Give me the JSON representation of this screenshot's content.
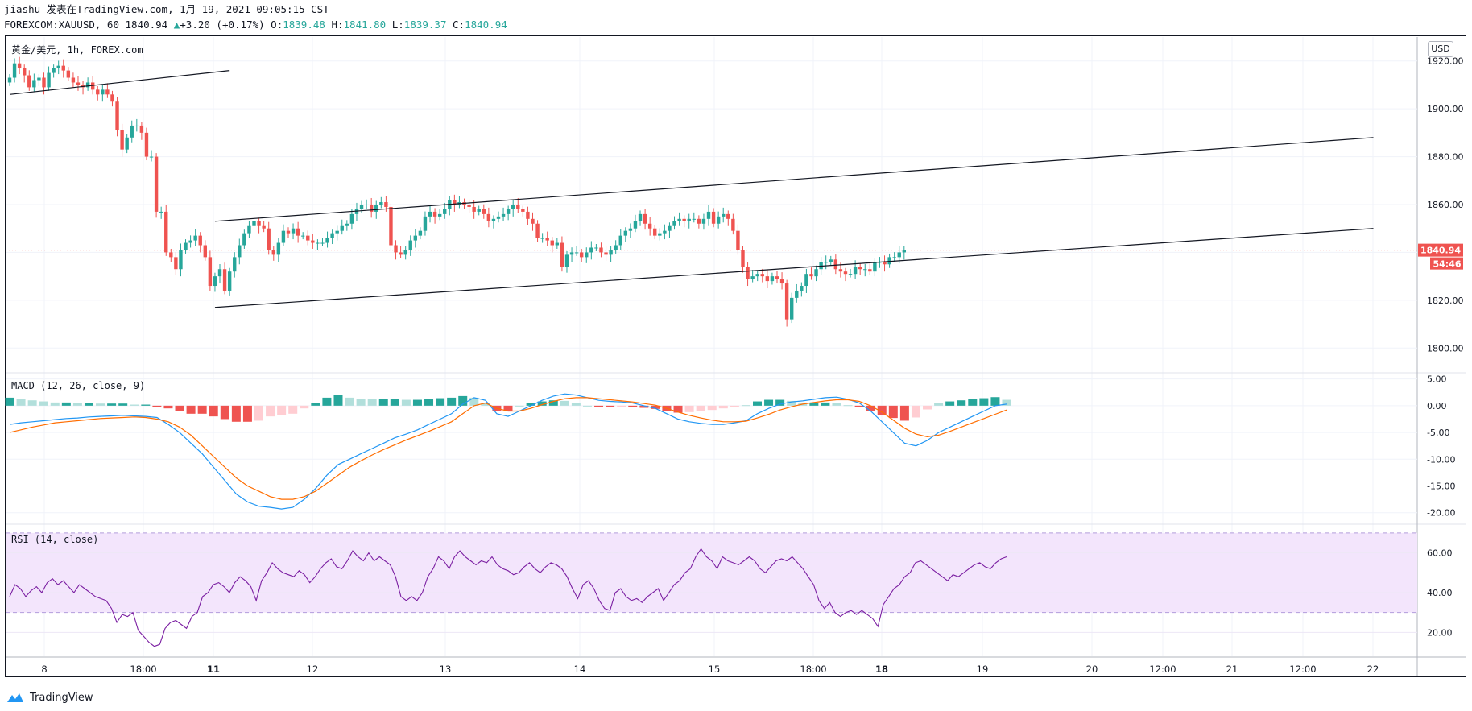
{
  "header": {
    "line1": "jiashu 发表在TradingView.com, 1月 19, 2021 09:05:15 CST",
    "symbol": "FOREXCOM:XAUUSD, 60",
    "last": "1840.94",
    "change": "+3.20 (+0.17%)",
    "o_label": "O:",
    "o_value": "1839.48",
    "h_label": "H:",
    "h_value": "1841.80",
    "l_label": "L:",
    "l_value": "1839.37",
    "c_label": "C:",
    "c_value": "1840.94"
  },
  "currency_badge": "USD",
  "footer_brand": "TradingView",
  "colors": {
    "up": "#26a69a",
    "down": "#ef5350",
    "macd": "#2196f3",
    "signal": "#ff6d00",
    "rsi": "#7b1fa2",
    "rsi_band": "#f3e5fc",
    "price_label": "#ef5350"
  },
  "chart_data": [
    {
      "type": "candlestick",
      "title": "黄金/美元, 1h, FOREX.com",
      "ylim": [
        1790,
        1930
      ],
      "y_ticks": [
        "1800.00",
        "1820.00",
        "1840.00",
        "1860.00",
        "1880.00",
        "1900.00",
        "1920.00"
      ],
      "x_ticks": [
        "8",
        "18:00",
        "11",
        "12",
        "13",
        "14",
        "15",
        "18:00",
        "18",
        "19",
        "20",
        "12:00",
        "21",
        "12:00",
        "22"
      ],
      "last_price": "1840.94",
      "countdown": "54:46",
      "trendlines": [
        {
          "from": [
            0,
            1906
          ],
          "to": [
            45,
            1916
          ]
        },
        {
          "from": [
            42,
            1853
          ],
          "to": [
            279,
            1888
          ]
        },
        {
          "from": [
            42,
            1817
          ],
          "to": [
            279,
            1850
          ]
        }
      ],
      "closes": [
        1913,
        1919,
        1917,
        1914,
        1909,
        1912,
        1913,
        1909,
        1915,
        1917,
        1918,
        1916,
        1913,
        1911,
        1910,
        1909,
        1911,
        1908,
        1906,
        1908,
        1906,
        1903,
        1891,
        1883,
        1888,
        1893,
        1893,
        1890,
        1880,
        1880,
        1857,
        1857,
        1840,
        1838,
        1833,
        1841,
        1844,
        1845,
        1847,
        1843,
        1838,
        1826,
        1830,
        1833,
        1824,
        1832,
        1838,
        1843,
        1848,
        1851,
        1853,
        1851,
        1850,
        1841,
        1839,
        1844,
        1849,
        1848,
        1850,
        1847,
        1847,
        1845,
        1844,
        1844,
        1844,
        1846,
        1848,
        1849,
        1851,
        1852,
        1856,
        1858,
        1860,
        1860,
        1857,
        1860,
        1861,
        1859,
        1843,
        1840,
        1839,
        1841,
        1845,
        1847,
        1849,
        1855,
        1857,
        1855,
        1856,
        1858,
        1862,
        1860,
        1861,
        1860,
        1859,
        1857,
        1858,
        1856,
        1853,
        1854,
        1855,
        1856,
        1858,
        1860,
        1858,
        1857,
        1854,
        1852,
        1846,
        1846,
        1845,
        1843,
        1844,
        1834,
        1839,
        1840,
        1840,
        1838,
        1840,
        1842,
        1842,
        1840,
        1839,
        1841,
        1843,
        1847,
        1849,
        1850,
        1853,
        1856,
        1852,
        1850,
        1847,
        1848,
        1849,
        1851,
        1853,
        1854,
        1853,
        1854,
        1854,
        1852,
        1854,
        1857,
        1852,
        1855,
        1856,
        1854,
        1849,
        1841,
        1834,
        1829,
        1830,
        1831,
        1830,
        1828,
        1830,
        1829,
        1827,
        1812,
        1821,
        1824,
        1826,
        1831,
        1830,
        1833,
        1836,
        1836,
        1837,
        1833,
        1832,
        1831,
        1831,
        1834,
        1833,
        1833,
        1832,
        1836,
        1836,
        1835,
        1838,
        1838,
        1840,
        1841
      ]
    },
    {
      "type": "bar+line",
      "title": "MACD (12, 26, close, 9)",
      "ylim": [
        -22,
        6
      ],
      "y_ticks": [
        "5.00",
        "0.00",
        "-5.00",
        "-10.00",
        "-15.00",
        "-20.00"
      ],
      "series": [
        {
          "name": "MACD",
          "values": [
            -3.5,
            -3.2,
            -3.0,
            -2.8,
            -2.6,
            -2.4,
            -2.3,
            -2.1,
            -2.0,
            -1.9,
            -1.8,
            -1.9,
            -2.0,
            -2.2,
            -3.5,
            -5.0,
            -7.0,
            -9.0,
            -11.5,
            -14.0,
            -16.5,
            -18.0,
            -18.8,
            -19.0,
            -19.3,
            -19.0,
            -17.5,
            -15.5,
            -13.0,
            -11.0,
            -10.0,
            -9.0,
            -8.0,
            -7.0,
            -6.0,
            -5.3,
            -4.5,
            -3.5,
            -2.5,
            -1.5,
            0.3,
            1.5,
            1.0,
            -1.5,
            -2.0,
            -1.0,
            0.0,
            1.0,
            1.8,
            2.2,
            2.0,
            1.5,
            1.0,
            0.8,
            0.7,
            0.5,
            0.0,
            -0.5,
            -1.5,
            -2.5,
            -3.0,
            -3.3,
            -3.5,
            -3.5,
            -3.2,
            -2.8,
            -1.5,
            -0.5,
            0.3,
            0.7,
            0.9,
            1.2,
            1.5,
            1.6,
            1.2,
            0.5,
            -1.0,
            -3.0,
            -5.0,
            -7.0,
            -7.5,
            -6.5,
            -5.0,
            -4.0,
            -3.0,
            -2.0,
            -1.0,
            0.0,
            0.3
          ]
        },
        {
          "name": "Signal",
          "values": [
            -5.0,
            -4.5,
            -4.0,
            -3.6,
            -3.2,
            -3.0,
            -2.8,
            -2.6,
            -2.4,
            -2.3,
            -2.2,
            -2.1,
            -2.2,
            -2.5,
            -3.0,
            -4.0,
            -5.5,
            -7.5,
            -9.5,
            -11.5,
            -13.5,
            -15.0,
            -16.0,
            -17.0,
            -17.5,
            -17.5,
            -17.0,
            -16.0,
            -14.5,
            -13.0,
            -11.5,
            -10.3,
            -9.2,
            -8.2,
            -7.3,
            -6.4,
            -5.6,
            -4.8,
            -3.9,
            -3.0,
            -1.5,
            0.0,
            0.5,
            -0.5,
            -1.0,
            -1.0,
            -0.5,
            0.2,
            0.8,
            1.3,
            1.5,
            1.5,
            1.3,
            1.1,
            0.9,
            0.7,
            0.4,
            0.1,
            -0.5,
            -1.2,
            -1.8,
            -2.3,
            -2.7,
            -3.0,
            -3.0,
            -2.9,
            -2.3,
            -1.6,
            -0.8,
            -0.2,
            0.3,
            0.6,
            0.9,
            1.1,
            1.1,
            0.8,
            0.0,
            -1.2,
            -2.7,
            -4.2,
            -5.3,
            -5.8,
            -5.5,
            -4.8,
            -4.0,
            -3.2,
            -2.4,
            -1.6,
            -0.8
          ]
        },
        {
          "name": "Histogram",
          "values": [
            1.5,
            1.3,
            1.0,
            0.8,
            0.6,
            0.6,
            0.5,
            0.5,
            0.4,
            0.4,
            0.4,
            0.2,
            0.2,
            -0.3,
            -0.5,
            -1.0,
            -1.5,
            -1.5,
            -2.0,
            -2.5,
            -3.0,
            -3.0,
            -2.8,
            -2.0,
            -1.8,
            -1.5,
            -0.5,
            0.5,
            1.5,
            2.0,
            1.5,
            1.3,
            1.2,
            1.2,
            1.3,
            1.1,
            1.1,
            1.3,
            1.4,
            1.5,
            1.8,
            1.5,
            0.5,
            -1.0,
            -1.0,
            0.0,
            0.5,
            0.8,
            1.0,
            0.9,
            0.5,
            0.0,
            -0.3,
            -0.3,
            -0.2,
            -0.2,
            -0.4,
            -0.6,
            -1.0,
            -1.3,
            -1.2,
            -1.0,
            -0.8,
            -0.5,
            -0.2,
            0.1,
            0.8,
            1.1,
            1.1,
            0.9,
            0.6,
            0.6,
            0.6,
            0.5,
            0.1,
            -0.3,
            -1.0,
            -1.8,
            -2.3,
            -2.8,
            -2.2,
            -0.7,
            0.5,
            0.8,
            1.0,
            1.2,
            1.4,
            1.6,
            1.1
          ]
        }
      ]
    },
    {
      "type": "line",
      "title": "RSI (14, close)",
      "ylim": [
        8,
        74
      ],
      "band": [
        30,
        70
      ],
      "y_ticks": [
        "60.00",
        "40.00",
        "20.00"
      ],
      "values": [
        38,
        44,
        42,
        38,
        41,
        43,
        40,
        45,
        47,
        44,
        46,
        43,
        40,
        44,
        42,
        40,
        38,
        37,
        36,
        32,
        25,
        29,
        28,
        30,
        21,
        18,
        15,
        13,
        14,
        22,
        25,
        26,
        24,
        22,
        28,
        30,
        38,
        40,
        44,
        45,
        43,
        40,
        45,
        48,
        46,
        43,
        36,
        46,
        50,
        55,
        52,
        50,
        49,
        48,
        51,
        49,
        45,
        48,
        52,
        55,
        57,
        53,
        52,
        56,
        61,
        58,
        56,
        60,
        56,
        58,
        56,
        54,
        48,
        38,
        36,
        38,
        36,
        40,
        48,
        52,
        58,
        56,
        52,
        58,
        61,
        58,
        56,
        54,
        56,
        55,
        58,
        54,
        52,
        51,
        49,
        50,
        53,
        55,
        52,
        50,
        53,
        55,
        54,
        52,
        48,
        42,
        37,
        44,
        46,
        42,
        36,
        32,
        31,
        40,
        42,
        38,
        36,
        37,
        35,
        38,
        40,
        42,
        36,
        40,
        44,
        46,
        50,
        52,
        58,
        62,
        58,
        56,
        52,
        58,
        56,
        55,
        54,
        56,
        58,
        56,
        52,
        50,
        53,
        56,
        57,
        56,
        58,
        55,
        52,
        48,
        44,
        36,
        32,
        35,
        30,
        28,
        30,
        31,
        29,
        31,
        29,
        27,
        23,
        34,
        38,
        42,
        44,
        48,
        50,
        55,
        56,
        54,
        52,
        50,
        48,
        46,
        49,
        48,
        50,
        52,
        54,
        55,
        53,
        52,
        55,
        57,
        58
      ]
    }
  ]
}
